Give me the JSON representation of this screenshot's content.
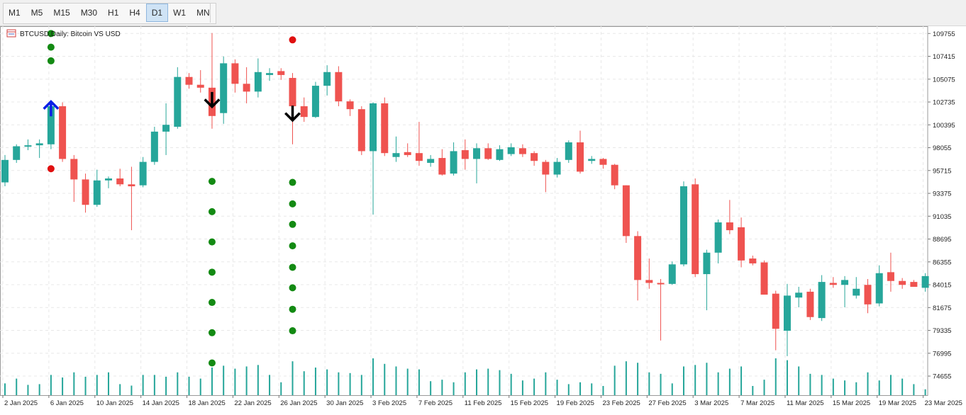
{
  "toolbar": {
    "timeframes": [
      "M1",
      "M5",
      "M15",
      "M30",
      "H1",
      "H4",
      "D1",
      "W1",
      "MN"
    ],
    "active": "D1"
  },
  "chart_header": {
    "symbol": "BTCUSD",
    "period": "Daily",
    "description": "Bitcoin VS USD",
    "label": "BTCUSD,Daily:  Bitcoin VS USD"
  },
  "colors": {
    "bull": "#26a69a",
    "bear": "#ef5350",
    "grid": "#e8e8e8",
    "dot_green": "#138a13",
    "dot_red": "#e01010",
    "arrow_up": "#0a1ee6",
    "arrow_down": "#000000",
    "volume": "#26a69a"
  },
  "chart_data": {
    "type": "candlestick",
    "ylim": [
      72700,
      110500
    ],
    "y_ticks": [
      109755,
      107415,
      105075,
      102735,
      100395,
      98055,
      95715,
      93375,
      91035,
      88695,
      86355,
      84015,
      81675,
      79335,
      76995,
      74655
    ],
    "x_tick_labels": [
      {
        "i": 0,
        "label": "2 Jan 2025"
      },
      {
        "i": 4,
        "label": "6 Jan 2025"
      },
      {
        "i": 8,
        "label": "10 Jan 2025"
      },
      {
        "i": 12,
        "label": "14 Jan 2025"
      },
      {
        "i": 16,
        "label": "18 Jan 2025"
      },
      {
        "i": 20,
        "label": "22 Jan 2025"
      },
      {
        "i": 24,
        "label": "26 Jan 2025"
      },
      {
        "i": 28,
        "label": "30 Jan 2025"
      },
      {
        "i": 32,
        "label": "3 Feb 2025"
      },
      {
        "i": 36,
        "label": "7 Feb 2025"
      },
      {
        "i": 40,
        "label": "11 Feb 2025"
      },
      {
        "i": 44,
        "label": "15 Feb 2025"
      },
      {
        "i": 48,
        "label": "19 Feb 2025"
      },
      {
        "i": 52,
        "label": "23 Feb 2025"
      },
      {
        "i": 56,
        "label": "27 Feb 2025"
      },
      {
        "i": 60,
        "label": "3 Mar 2025"
      },
      {
        "i": 64,
        "label": "7 Mar 2025"
      },
      {
        "i": 68,
        "label": "11 Mar 2025"
      },
      {
        "i": 72,
        "label": "15 Mar 2025"
      },
      {
        "i": 76,
        "label": "19 Mar 2025"
      },
      {
        "i": 80,
        "label": "23 Mar 2025"
      }
    ],
    "candles": [
      {
        "o": 94500,
        "h": 97300,
        "l": 94100,
        "c": 96800
      },
      {
        "o": 96800,
        "h": 98400,
        "l": 96500,
        "c": 98200
      },
      {
        "o": 98200,
        "h": 98900,
        "l": 97800,
        "c": 98300
      },
      {
        "o": 98300,
        "h": 98900,
        "l": 97000,
        "c": 98500
      },
      {
        "o": 98400,
        "h": 102700,
        "l": 97900,
        "c": 102300
      },
      {
        "o": 102300,
        "h": 102700,
        "l": 96600,
        "c": 96900
      },
      {
        "o": 96900,
        "h": 97300,
        "l": 92500,
        "c": 94800
      },
      {
        "o": 94800,
        "h": 95400,
        "l": 91400,
        "c": 92200
      },
      {
        "o": 92200,
        "h": 95800,
        "l": 92000,
        "c": 94700
      },
      {
        "o": 94700,
        "h": 95100,
        "l": 93900,
        "c": 94900
      },
      {
        "o": 94900,
        "h": 95900,
        "l": 94100,
        "c": 94300
      },
      {
        "o": 94300,
        "h": 96100,
        "l": 89600,
        "c": 94100
      },
      {
        "o": 94200,
        "h": 97100,
        "l": 94000,
        "c": 96600
      },
      {
        "o": 96600,
        "h": 100200,
        "l": 96300,
        "c": 99700
      },
      {
        "o": 99700,
        "h": 102600,
        "l": 97300,
        "c": 100400
      },
      {
        "o": 100200,
        "h": 106300,
        "l": 100000,
        "c": 105300
      },
      {
        "o": 105300,
        "h": 105700,
        "l": 104100,
        "c": 104500
      },
      {
        "o": 104500,
        "h": 106000,
        "l": 103700,
        "c": 104200
      },
      {
        "o": 104200,
        "h": 109800,
        "l": 100000,
        "c": 101300
      },
      {
        "o": 101600,
        "h": 107400,
        "l": 100500,
        "c": 106700
      },
      {
        "o": 106700,
        "h": 107100,
        "l": 103700,
        "c": 104600
      },
      {
        "o": 104600,
        "h": 106300,
        "l": 102600,
        "c": 103800
      },
      {
        "o": 103800,
        "h": 107200,
        "l": 103200,
        "c": 105800
      },
      {
        "o": 105500,
        "h": 106200,
        "l": 104900,
        "c": 105700
      },
      {
        "o": 105900,
        "h": 106200,
        "l": 105000,
        "c": 105500
      },
      {
        "o": 105200,
        "h": 105700,
        "l": 98400,
        "c": 102300
      },
      {
        "o": 102300,
        "h": 103200,
        "l": 100700,
        "c": 101200
      },
      {
        "o": 101200,
        "h": 104800,
        "l": 101100,
        "c": 104400
      },
      {
        "o": 104400,
        "h": 106500,
        "l": 103400,
        "c": 105800
      },
      {
        "o": 105800,
        "h": 106400,
        "l": 102300,
        "c": 102800
      },
      {
        "o": 102800,
        "h": 103000,
        "l": 101300,
        "c": 102000
      },
      {
        "o": 102000,
        "h": 102300,
        "l": 97300,
        "c": 97700
      },
      {
        "o": 97700,
        "h": 102700,
        "l": 91200,
        "c": 102600
      },
      {
        "o": 102600,
        "h": 103200,
        "l": 97200,
        "c": 97500
      },
      {
        "o": 97100,
        "h": 99200,
        "l": 96600,
        "c": 97500
      },
      {
        "o": 97600,
        "h": 98500,
        "l": 97100,
        "c": 97300
      },
      {
        "o": 97500,
        "h": 100700,
        "l": 96200,
        "c": 96700
      },
      {
        "o": 96500,
        "h": 97300,
        "l": 96100,
        "c": 96900
      },
      {
        "o": 97000,
        "h": 97900,
        "l": 95200,
        "c": 95300
      },
      {
        "o": 95400,
        "h": 98600,
        "l": 95200,
        "c": 97700
      },
      {
        "o": 97800,
        "h": 98900,
        "l": 95800,
        "c": 96900
      },
      {
        "o": 96900,
        "h": 98500,
        "l": 94400,
        "c": 98000
      },
      {
        "o": 98000,
        "h": 98500,
        "l": 96800,
        "c": 96900
      },
      {
        "o": 96800,
        "h": 98300,
        "l": 96700,
        "c": 97900
      },
      {
        "o": 97400,
        "h": 98500,
        "l": 97200,
        "c": 98100
      },
      {
        "o": 98000,
        "h": 98400,
        "l": 97100,
        "c": 97400
      },
      {
        "o": 97500,
        "h": 97700,
        "l": 96200,
        "c": 96700
      },
      {
        "o": 96600,
        "h": 96800,
        "l": 93500,
        "c": 95300
      },
      {
        "o": 95300,
        "h": 97000,
        "l": 95000,
        "c": 96600
      },
      {
        "o": 96800,
        "h": 98800,
        "l": 96500,
        "c": 98600
      },
      {
        "o": 98600,
        "h": 99800,
        "l": 95400,
        "c": 95600
      },
      {
        "o": 96700,
        "h": 97200,
        "l": 96400,
        "c": 96900
      },
      {
        "o": 96900,
        "h": 97000,
        "l": 95900,
        "c": 96300
      },
      {
        "o": 96300,
        "h": 96400,
        "l": 93800,
        "c": 94200
      },
      {
        "o": 94200,
        "h": 94200,
        "l": 88300,
        "c": 89000
      },
      {
        "o": 89000,
        "h": 89500,
        "l": 82400,
        "c": 84500
      },
      {
        "o": 84500,
        "h": 86700,
        "l": 83600,
        "c": 84200
      },
      {
        "o": 84200,
        "h": 84600,
        "l": 78300,
        "c": 84100
      },
      {
        "o": 84100,
        "h": 86400,
        "l": 84000,
        "c": 86100
      },
      {
        "o": 86100,
        "h": 94600,
        "l": 85900,
        "c": 94100
      },
      {
        "o": 94300,
        "h": 94900,
        "l": 84800,
        "c": 85100
      },
      {
        "o": 85100,
        "h": 87600,
        "l": 81400,
        "c": 87300
      },
      {
        "o": 87300,
        "h": 90700,
        "l": 86200,
        "c": 90400
      },
      {
        "o": 90400,
        "h": 92700,
        "l": 89200,
        "c": 89600
      },
      {
        "o": 89900,
        "h": 90900,
        "l": 85800,
        "c": 86500
      },
      {
        "o": 86700,
        "h": 87000,
        "l": 86000,
        "c": 86200
      },
      {
        "o": 86300,
        "h": 86500,
        "l": 83000,
        "c": 83000
      },
      {
        "o": 83100,
        "h": 83400,
        "l": 77300,
        "c": 79500
      },
      {
        "o": 79300,
        "h": 84100,
        "l": 76700,
        "c": 82900
      },
      {
        "o": 82700,
        "h": 83800,
        "l": 81700,
        "c": 83200
      },
      {
        "o": 83300,
        "h": 83600,
        "l": 80400,
        "c": 80700
      },
      {
        "o": 80600,
        "h": 85000,
        "l": 80300,
        "c": 84300
      },
      {
        "o": 84200,
        "h": 84800,
        "l": 83700,
        "c": 84000
      },
      {
        "o": 84000,
        "h": 84900,
        "l": 81700,
        "c": 84500
      },
      {
        "o": 82900,
        "h": 84800,
        "l": 82600,
        "c": 83600
      },
      {
        "o": 84000,
        "h": 84600,
        "l": 81100,
        "c": 82000
      },
      {
        "o": 82100,
        "h": 86000,
        "l": 81800,
        "c": 85200
      },
      {
        "o": 85300,
        "h": 87300,
        "l": 83300,
        "c": 84400
      },
      {
        "o": 84400,
        "h": 84700,
        "l": 83600,
        "c": 84000
      },
      {
        "o": 84300,
        "h": 84500,
        "l": 83800,
        "c": 83800
      },
      {
        "o": 83700,
        "h": 85200,
        "l": 83300,
        "c": 84900
      }
    ],
    "volume_relative": [
      0.32,
      0.45,
      0.28,
      0.3,
      0.55,
      0.48,
      0.62,
      0.5,
      0.55,
      0.62,
      0.3,
      0.26,
      0.55,
      0.55,
      0.5,
      0.62,
      0.5,
      0.45,
      0.75,
      0.8,
      0.72,
      0.78,
      0.82,
      0.55,
      0.35,
      0.92,
      0.65,
      0.75,
      0.7,
      0.62,
      0.6,
      0.55,
      1.0,
      0.85,
      0.78,
      0.72,
      0.7,
      0.38,
      0.42,
      0.35,
      0.62,
      0.7,
      0.72,
      0.68,
      0.58,
      0.4,
      0.45,
      0.62,
      0.42,
      0.3,
      0.35,
      0.32,
      0.25,
      0.8,
      0.92,
      0.88,
      0.62,
      0.58,
      0.32,
      0.78,
      0.82,
      0.88,
      0.62,
      0.72,
      0.78,
      0.25,
      0.42,
      1.0,
      0.95,
      0.78,
      0.58,
      0.55,
      0.45,
      0.4,
      0.35,
      0.62,
      0.4,
      0.55,
      0.45,
      0.3,
      0.16
    ],
    "dots": [
      {
        "i": 4,
        "v": 109750,
        "color": "green"
      },
      {
        "i": 4,
        "v": 108350,
        "color": "green"
      },
      {
        "i": 4,
        "v": 106950,
        "color": "green"
      },
      {
        "i": 4,
        "v": 95900,
        "color": "red"
      },
      {
        "i": 18,
        "v": 94600,
        "color": "green"
      },
      {
        "i": 18,
        "v": 91500,
        "color": "green"
      },
      {
        "i": 18,
        "v": 88400,
        "color": "green"
      },
      {
        "i": 18,
        "v": 85300,
        "color": "green"
      },
      {
        "i": 18,
        "v": 82200,
        "color": "green"
      },
      {
        "i": 18,
        "v": 79100,
        "color": "green"
      },
      {
        "i": 18,
        "v": 76000,
        "color": "green"
      },
      {
        "i": 25,
        "v": 109100,
        "color": "red"
      },
      {
        "i": 25,
        "v": 94500,
        "color": "green"
      },
      {
        "i": 25,
        "v": 92300,
        "color": "green"
      },
      {
        "i": 25,
        "v": 90200,
        "color": "green"
      },
      {
        "i": 25,
        "v": 88000,
        "color": "green"
      },
      {
        "i": 25,
        "v": 85800,
        "color": "green"
      },
      {
        "i": 25,
        "v": 83700,
        "color": "green"
      },
      {
        "i": 25,
        "v": 81500,
        "color": "green"
      },
      {
        "i": 25,
        "v": 79300,
        "color": "green"
      }
    ],
    "arrows": [
      {
        "i": 4,
        "v": 102700,
        "dir": "up"
      },
      {
        "i": 18,
        "v": 103200,
        "dir": "down"
      },
      {
        "i": 25,
        "v": 101800,
        "dir": "down"
      }
    ],
    "grid": true
  }
}
